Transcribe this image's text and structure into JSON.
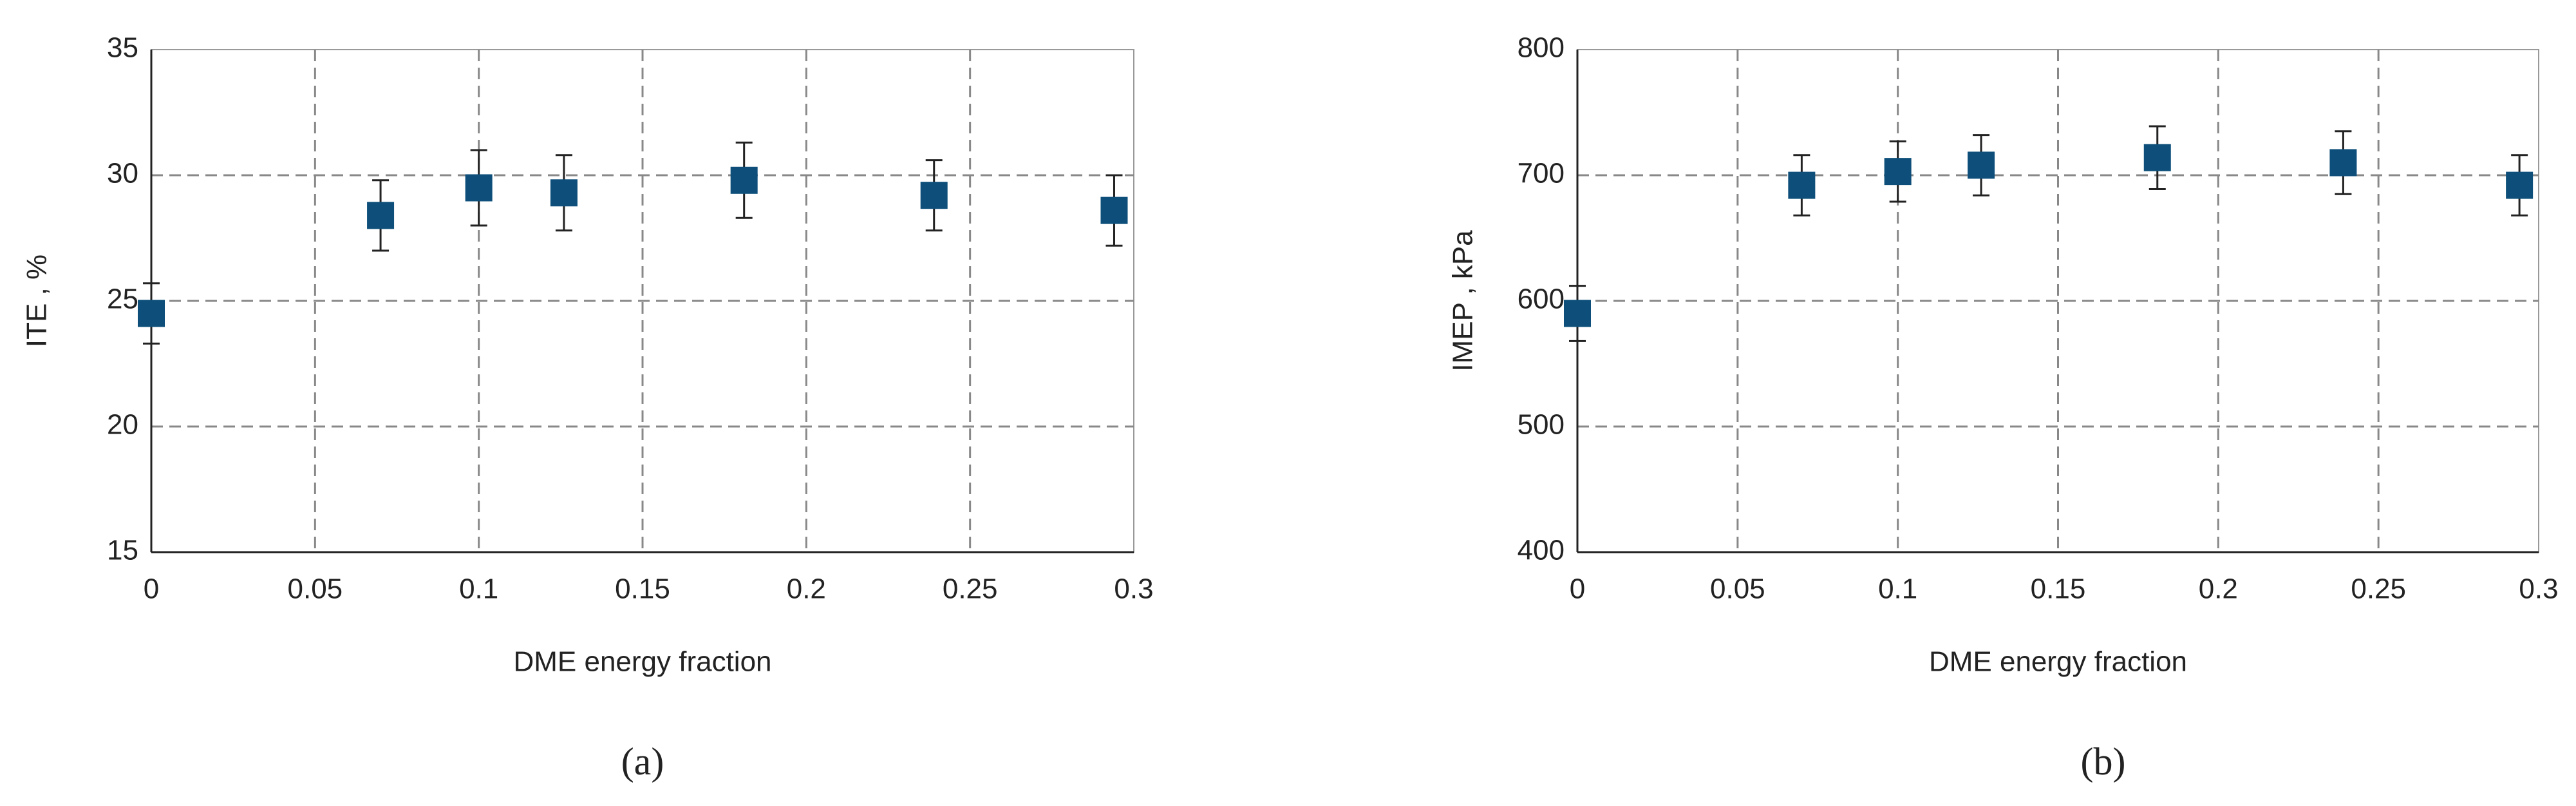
{
  "chart_data": [
    {
      "type": "scatter",
      "caption": "(a)",
      "x_label": "DME energy fraction",
      "y_label": "ITE , %",
      "color": "#0d4f7a",
      "grid": true,
      "x": [
        0,
        0.07,
        0.1,
        0.126,
        0.181,
        0.239,
        0.294
      ],
      "series": [
        {
          "values": [
            24.5,
            28.4,
            29.5,
            29.3,
            29.8,
            29.2,
            28.6
          ],
          "errors": [
            1.2,
            1.4,
            1.5,
            1.5,
            1.5,
            1.4,
            1.4
          ]
        }
      ],
      "xlim": [
        0,
        0.3
      ],
      "xticks": [
        0,
        0.05,
        0.1,
        0.15,
        0.2,
        0.25,
        0.3
      ],
      "ylim": [
        15,
        35
      ],
      "yticks": [
        15,
        20,
        25,
        30,
        35
      ]
    },
    {
      "type": "scatter",
      "caption": "(b)",
      "x_label": "DME energy fraction",
      "y_label": "IMEP , kPa",
      "color": "#0d4f7a",
      "grid": true,
      "x": [
        0,
        0.07,
        0.1,
        0.126,
        0.181,
        0.239,
        0.294
      ],
      "series": [
        {
          "values": [
            590,
            692,
            703,
            708,
            714,
            710,
            692
          ],
          "errors": [
            22,
            24,
            24,
            24,
            25,
            25,
            24
          ]
        }
      ],
      "xlim": [
        0,
        0.3
      ],
      "xticks": [
        0,
        0.05,
        0.1,
        0.15,
        0.2,
        0.25,
        0.3
      ],
      "ylim": [
        400,
        800
      ],
      "yticks": [
        400,
        500,
        600,
        700,
        800
      ]
    }
  ]
}
